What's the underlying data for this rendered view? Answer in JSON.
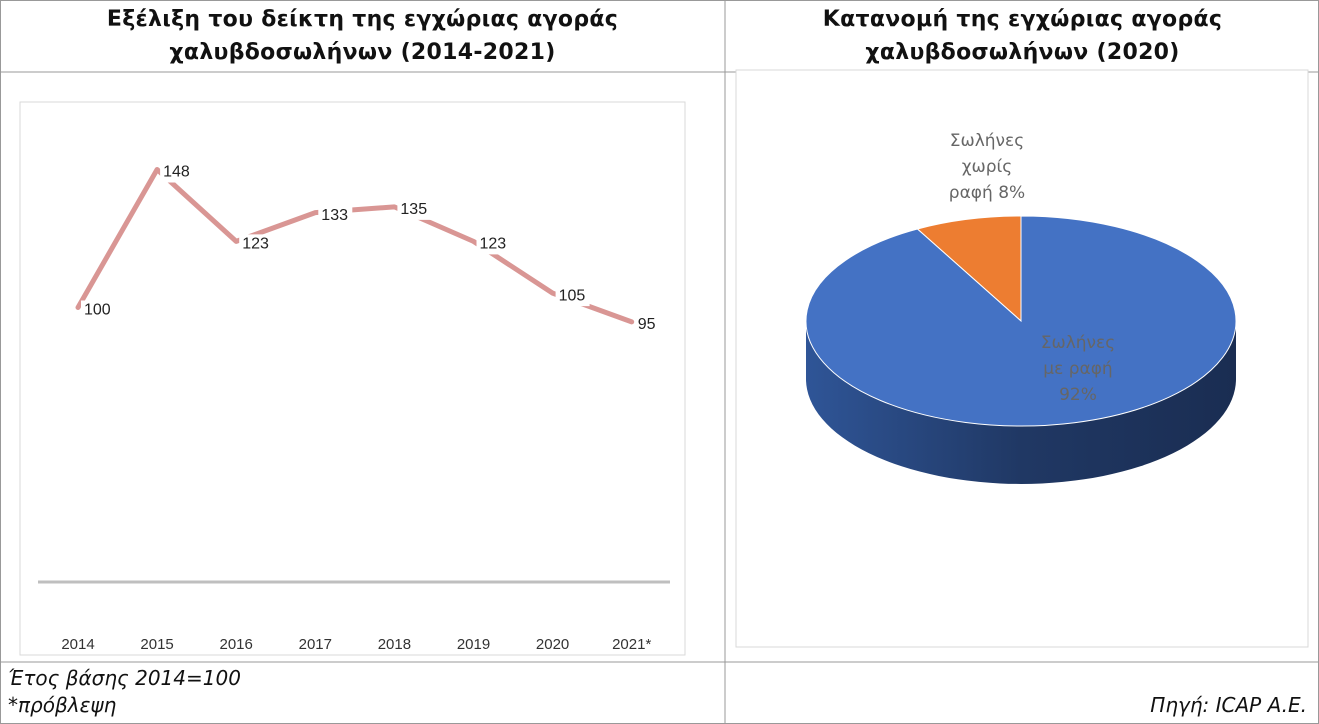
{
  "chart_data": [
    {
      "type": "line",
      "title": "Εξέλιξη του δείκτη της εγχώριας αγοράς χαλυβδοσωλήνων (2014-2021)",
      "categories": [
        "2014",
        "2015",
        "2016",
        "2017",
        "2018",
        "2019",
        "2020",
        "2021*"
      ],
      "values": [
        100,
        148,
        123,
        133,
        135,
        123,
        105,
        95
      ],
      "color": "#d99694"
    },
    {
      "type": "pie",
      "title": "Κατανομή της εγχώριας αγοράς χαλυβδοσωλήνων (2020)",
      "categories": [
        "Σωλήνες χωρίς ραφή",
        "Σωλήνες με ραφή"
      ],
      "values": [
        8,
        92
      ],
      "value_labels": [
        "8%",
        "92%"
      ],
      "colors": [
        "#ed7d31",
        "#4472c4"
      ]
    }
  ],
  "notes": [
    "Έτος βάσης 2014=100",
    "*πρόβλεψη"
  ],
  "source": "Πηγή: ICAP A.E."
}
